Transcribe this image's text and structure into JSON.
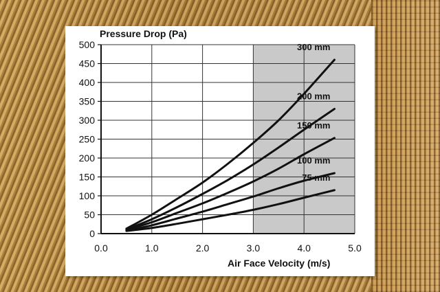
{
  "chart_data": {
    "type": "line",
    "title": "Pressure Drop (Pa)",
    "xlabel": "Air Face Velocity (m/s)",
    "ylabel": "Pressure Drop (Pa)",
    "xlim": [
      0,
      5
    ],
    "ylim": [
      0,
      500
    ],
    "x_ticks": [
      "0.0",
      "1.0",
      "2.0",
      "3.0",
      "4.0",
      "5.0"
    ],
    "y_ticks": [
      "0",
      "50",
      "100",
      "150",
      "200",
      "250",
      "300",
      "350",
      "400",
      "450",
      "500"
    ],
    "shaded_region_x": [
      3.0,
      5.0
    ],
    "grid": true,
    "line_color": "#111111",
    "shade_color": "#c9c9c9",
    "series": [
      {
        "name": "300 mm",
        "x": [
          0.5,
          1.0,
          1.5,
          2.0,
          2.5,
          3.0,
          3.5,
          4.0,
          4.6
        ],
        "y": [
          13,
          50,
          92,
          135,
          185,
          240,
          300,
          370,
          460
        ]
      },
      {
        "name": "200 mm",
        "x": [
          0.5,
          1.0,
          1.5,
          2.0,
          2.5,
          3.0,
          3.5,
          4.0,
          4.6
        ],
        "y": [
          11,
          38,
          70,
          105,
          142,
          183,
          228,
          275,
          330
        ]
      },
      {
        "name": "150 mm",
        "x": [
          0.5,
          1.0,
          1.5,
          2.0,
          2.5,
          3.0,
          3.5,
          4.0,
          4.6
        ],
        "y": [
          10,
          30,
          55,
          80,
          108,
          138,
          172,
          210,
          253
        ]
      },
      {
        "name": "100 mm",
        "x": [
          0.5,
          1.0,
          1.5,
          2.0,
          2.5,
          3.0,
          3.5,
          4.0,
          4.6
        ],
        "y": [
          8,
          22,
          40,
          58,
          78,
          98,
          120,
          140,
          160
        ]
      },
      {
        "name": "75 mm",
        "x": [
          0.5,
          1.0,
          1.5,
          2.0,
          2.5,
          3.0,
          3.5,
          4.0,
          4.6
        ],
        "y": [
          7,
          15,
          26,
          38,
          50,
          63,
          78,
          95,
          115
        ]
      }
    ]
  }
}
